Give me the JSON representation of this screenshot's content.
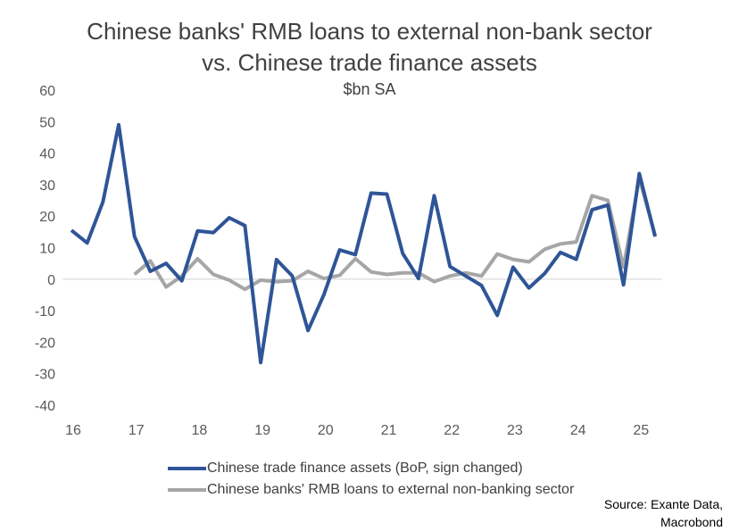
{
  "title_line_1": "Chinese banks' RMB loans to external non-bank sector",
  "title_line_2": "vs. Chinese trade finance assets",
  "subtitle": "$bn SA",
  "source_line_1": "Source: Exante Data,",
  "source_line_2": "Macrobond",
  "colors": {
    "series_1": "#2F5597",
    "series_2": "#A6A6A6",
    "axis": "#D9D9D9"
  },
  "chart_data": {
    "type": "line",
    "title": "Chinese banks' RMB loans to external non-bank sector vs. Chinese trade finance assets",
    "subtitle": "$bn SA",
    "xlabel": "",
    "ylabel": "",
    "ylim": [
      -40,
      60
    ],
    "yticks": [
      60,
      50,
      40,
      30,
      20,
      10,
      0,
      -10,
      -20,
      -30,
      -40
    ],
    "xlim": [
      2016,
      2025.33
    ],
    "xticks": [
      "16",
      "17",
      "18",
      "19",
      "20",
      "21",
      "22",
      "23",
      "24",
      "25"
    ],
    "grid": false,
    "legend": "bottom",
    "series": [
      {
        "name": "Chinese trade finance assets (BoP, sign changed)",
        "color": "#2F5597",
        "x": [
          2016.0,
          2016.25,
          2016.5,
          2016.75,
          2017.0,
          2017.25,
          2017.5,
          2017.75,
          2018.0,
          2018.25,
          2018.5,
          2018.75,
          2019.0,
          2019.25,
          2019.5,
          2019.75,
          2020.0,
          2020.25,
          2020.5,
          2020.75,
          2021.0,
          2021.25,
          2021.5,
          2021.75,
          2022.0,
          2022.25,
          2022.5,
          2022.75,
          2023.0,
          2023.25,
          2023.5,
          2023.75,
          2024.0,
          2024.25,
          2024.5,
          2024.75,
          2025.0,
          2025.25
        ],
        "values": [
          15.5,
          11.5,
          24.5,
          49.0,
          13.5,
          2.5,
          5.0,
          -0.5,
          15.3,
          14.8,
          19.5,
          17.0,
          -26.5,
          6.2,
          1.0,
          -16.3,
          -5.0,
          9.3,
          7.8,
          27.3,
          27.0,
          8.2,
          0.2,
          26.5,
          4.0,
          1.0,
          -2.0,
          -11.5,
          3.8,
          -2.8,
          1.8,
          8.5,
          6.3,
          22.0,
          23.5,
          -1.8,
          33.5,
          13.5
        ]
      },
      {
        "name": "Chinese banks' RMB loans to external non-banking sector",
        "color": "#A6A6A6",
        "x": [
          2017.0,
          2017.25,
          2017.5,
          2017.75,
          2018.0,
          2018.25,
          2018.5,
          2018.75,
          2019.0,
          2019.25,
          2019.5,
          2019.75,
          2020.0,
          2020.25,
          2020.5,
          2020.75,
          2021.0,
          2021.25,
          2021.5,
          2021.75,
          2022.0,
          2022.25,
          2022.5,
          2022.75,
          2023.0,
          2023.25,
          2023.5,
          2023.75,
          2024.0,
          2024.25,
          2024.5,
          2024.75,
          2025.0,
          2025.25
        ],
        "values": [
          1.5,
          5.8,
          -2.5,
          1.0,
          6.5,
          1.5,
          -0.3,
          -3.2,
          -0.3,
          -0.8,
          -0.5,
          2.5,
          0.2,
          1.2,
          6.5,
          2.3,
          1.5,
          2.0,
          2.0,
          -0.8,
          1.0,
          2.0,
          1.0,
          8.0,
          6.3,
          5.5,
          9.5,
          11.2,
          11.8,
          26.5,
          25.0,
          3.8,
          32.0,
          14.0
        ]
      }
    ]
  }
}
